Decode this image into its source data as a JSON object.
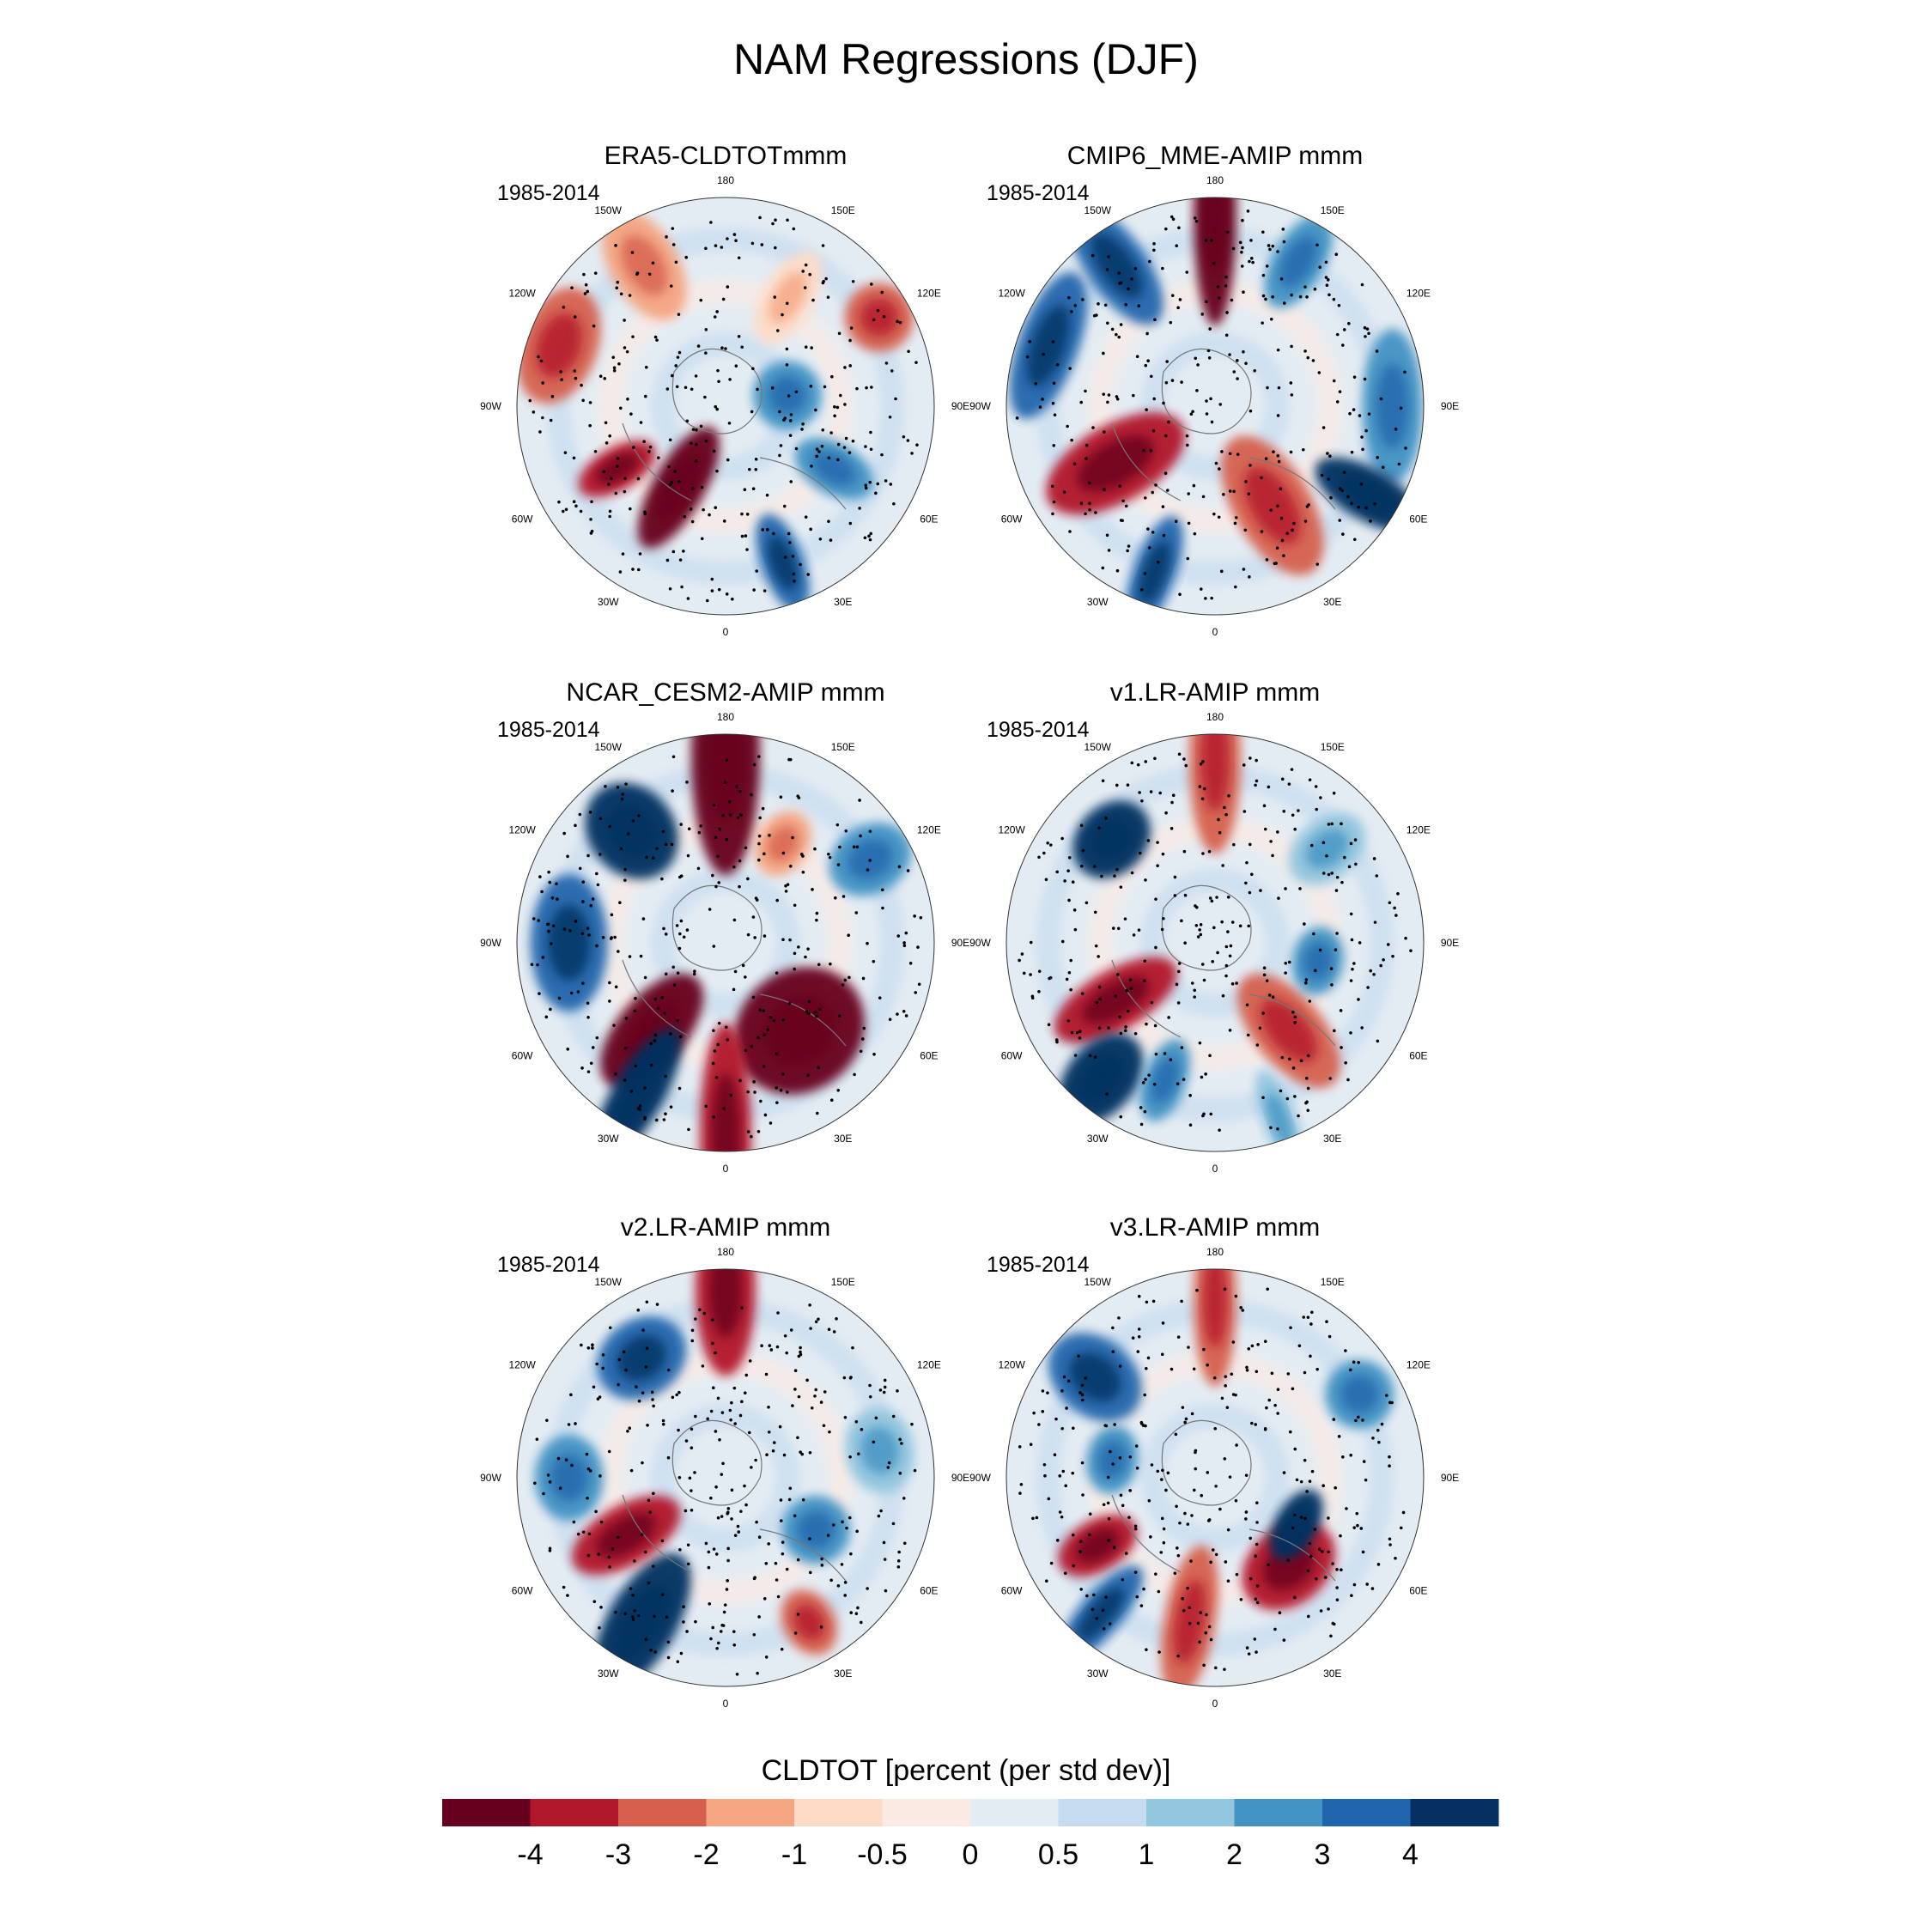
{
  "figure": {
    "title": "NAM Regressions (DJF)"
  },
  "panels": [
    {
      "title": "ERA5-CLDTOTmmm",
      "period": "1985-2014"
    },
    {
      "title": "CMIP6_MME-AMIP  mmm",
      "period": "1985-2014"
    },
    {
      "title": "NCAR_CESM2-AMIP  mmm",
      "period": "1985-2014"
    },
    {
      "title": "v1.LR-AMIP  mmm",
      "period": "1985-2014"
    },
    {
      "title": "v2.LR-AMIP  mmm",
      "period": "1985-2014"
    },
    {
      "title": "v3.LR-AMIP  mmm",
      "period": "1985-2014"
    }
  ],
  "longitude_labels": [
    "180",
    "150E",
    "120E",
    "90E",
    "60E",
    "30E",
    "0",
    "30W",
    "60W",
    "90W",
    "120W",
    "150W"
  ],
  "colorbar": {
    "title": "CLDTOT [percent (per std dev)]",
    "tick_labels": [
      "-4",
      "-3",
      "-2",
      "-1",
      "-0.5",
      "0",
      "0.5",
      "1",
      "2",
      "3",
      "4"
    ],
    "colors": [
      "#67001f",
      "#b2182b",
      "#d6604d",
      "#f4a582",
      "#fddbc7",
      "#fbeae3",
      "#e4ecf3",
      "#c6dbef",
      "#92c5de",
      "#4393c3",
      "#2166ac",
      "#053061"
    ]
  },
  "chart_data": {
    "type": "map",
    "projection": "north polar stereographic",
    "variable": "CLDTOT",
    "units": "percent (per std dev)",
    "season": "DJF",
    "levels": [
      -4,
      -3,
      -2,
      -1,
      -0.5,
      0,
      0.5,
      1,
      2,
      3,
      4
    ],
    "stippling": "dots mark significant regions"
  }
}
